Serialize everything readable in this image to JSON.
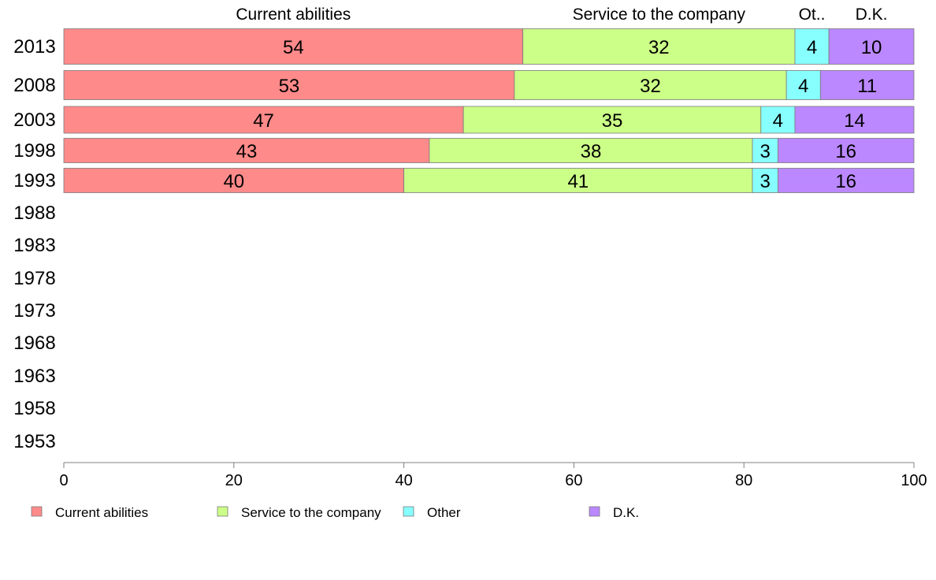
{
  "chart_data": {
    "type": "bar",
    "orientation": "horizontal",
    "stacked": true,
    "categories": [
      "2013",
      "2008",
      "2003",
      "1998",
      "1993",
      "1988",
      "1983",
      "1978",
      "1973",
      "1968",
      "1963",
      "1958",
      "1953"
    ],
    "series": [
      {
        "name": "Current abilities",
        "header": "Current abilities",
        "color": "#ff8a8a",
        "values": [
          54,
          53,
          47,
          43,
          40,
          null,
          null,
          null,
          null,
          null,
          null,
          null,
          null
        ]
      },
      {
        "name": "Service to the company",
        "header": "Service to the company",
        "color": "#ccff88",
        "values": [
          32,
          32,
          35,
          38,
          41,
          null,
          null,
          null,
          null,
          null,
          null,
          null,
          null
        ]
      },
      {
        "name": "Other",
        "header": "Ot..",
        "color": "#88ffff",
        "values": [
          4,
          4,
          4,
          3,
          3,
          null,
          null,
          null,
          null,
          null,
          null,
          null,
          null
        ]
      },
      {
        "name": "D.K.",
        "header": "D.K.",
        "color": "#bb88ff",
        "values": [
          10,
          11,
          14,
          16,
          16,
          null,
          null,
          null,
          null,
          null,
          null,
          null,
          null
        ]
      }
    ],
    "xlim": [
      0,
      100
    ],
    "xticks": [
      0,
      20,
      40,
      60,
      80,
      100
    ],
    "grid": false,
    "legend_position": "bottom"
  }
}
